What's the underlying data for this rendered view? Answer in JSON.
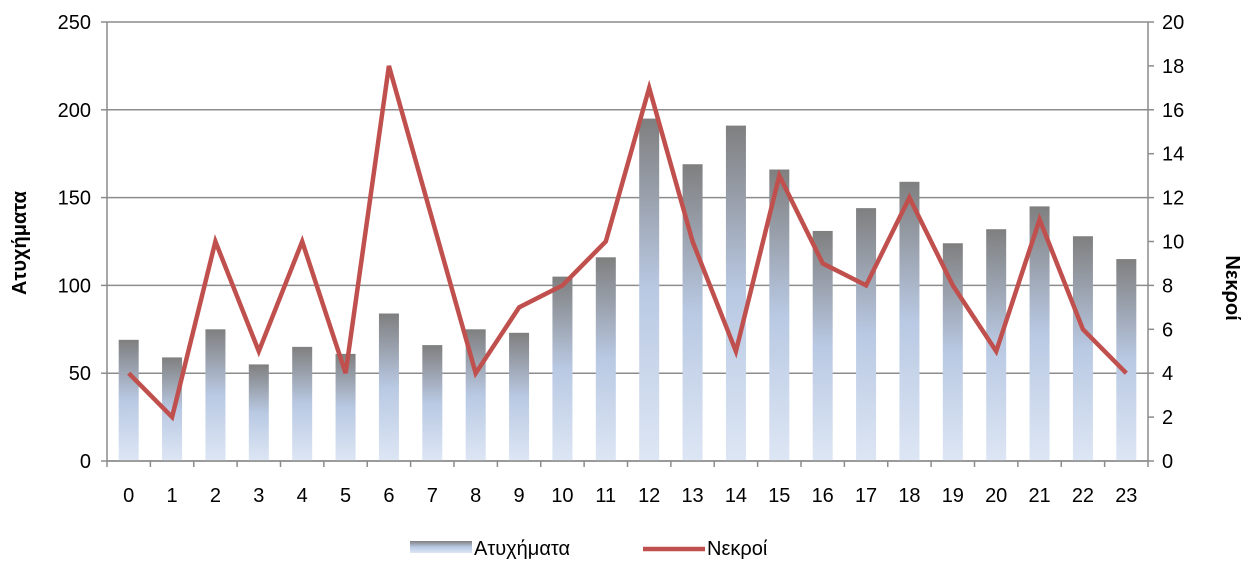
{
  "chart_data": {
    "type": "bar",
    "categories": [
      "0",
      "1",
      "2",
      "3",
      "4",
      "5",
      "6",
      "7",
      "8",
      "9",
      "10",
      "11",
      "12",
      "13",
      "14",
      "15",
      "16",
      "17",
      "18",
      "19",
      "20",
      "21",
      "22",
      "23"
    ],
    "series": [
      {
        "name": "Ατυχήματα",
        "type": "bar",
        "axis": "left",
        "color": "#7f7f7f",
        "values": [
          69,
          59,
          75,
          55,
          65,
          61,
          84,
          66,
          75,
          73,
          105,
          116,
          195,
          169,
          191,
          166,
          131,
          144,
          159,
          124,
          132,
          145,
          128,
          115
        ]
      },
      {
        "name": "Νεκροί",
        "type": "line",
        "axis": "right",
        "color": "#c0504d",
        "values": [
          4,
          2,
          10,
          5,
          10,
          4,
          18,
          11,
          4,
          7,
          8,
          10,
          17,
          10,
          5,
          13,
          9,
          8,
          12,
          8,
          5,
          11,
          6,
          4
        ]
      }
    ],
    "ylabel": "Ατυχήματα",
    "y2label": "Νεκροί",
    "ylim": [
      0,
      250
    ],
    "y2lim": [
      0,
      20
    ],
    "yticks": [
      "0",
      "50",
      "100",
      "150",
      "200",
      "250"
    ],
    "y2ticks": [
      "0",
      "2",
      "4",
      "6",
      "8",
      "10",
      "12",
      "14",
      "16",
      "18",
      "20"
    ],
    "grid": true,
    "legend_position": "bottom"
  }
}
